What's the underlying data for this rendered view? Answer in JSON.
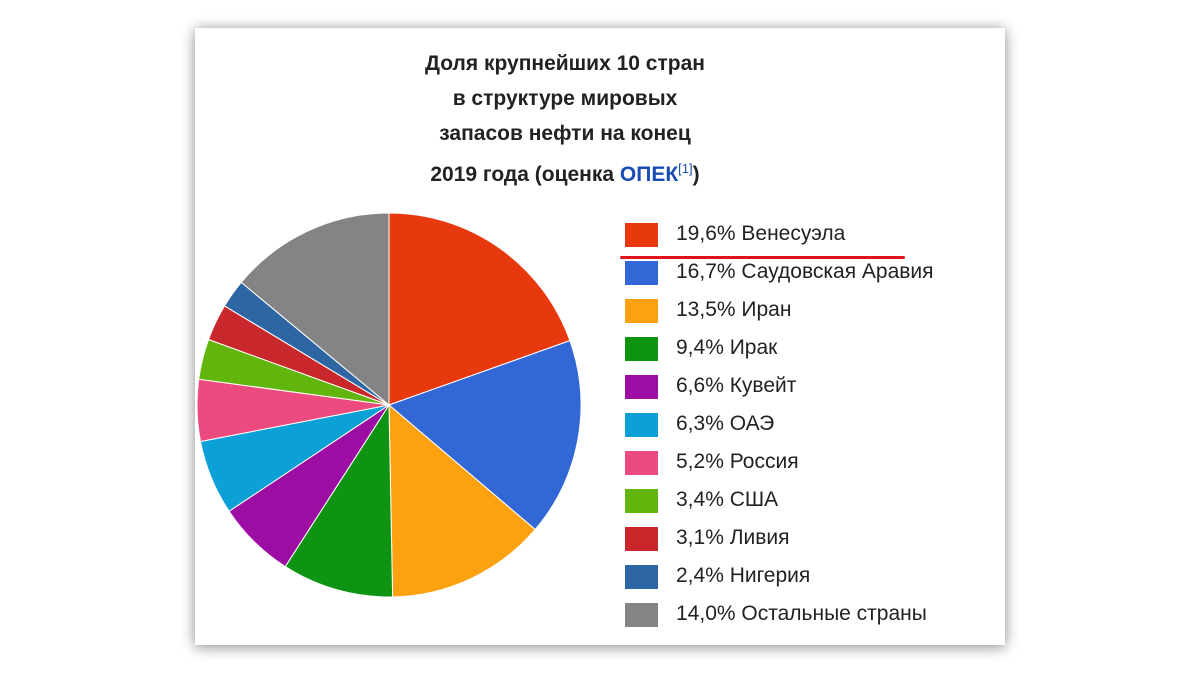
{
  "title": {
    "lines": [
      "Доля крупнейших 10 стран",
      "в структуре мировых",
      "запасов нефти на конец"
    ],
    "last_line_prefix": "2019 года (оценка ",
    "last_line_link": "ОПЕК",
    "last_line_ref": "[1]",
    "last_line_suffix": ")"
  },
  "chart_data": {
    "type": "pie",
    "title": "Доля крупнейших 10 стран в структуре мировых запасов нефти на конец 2019 года (оценка ОПЕК[1])",
    "slices": [
      {
        "label": "19,6% Венесуэла",
        "name": "Венесуэла",
        "value": 19.6,
        "color": "#e8380d"
      },
      {
        "label": "16,7% Саудовская Аравия",
        "name": "Саудовская Аравия",
        "value": 16.7,
        "color": "#3267d6"
      },
      {
        "label": "13,5% Иран",
        "name": "Иран",
        "value": 13.5,
        "color": "#fca10f"
      },
      {
        "label": "9,4% Ирак",
        "name": "Ирак",
        "value": 9.4,
        "color": "#0e9412"
      },
      {
        "label": "6,6% Кувейт",
        "name": "Кувейт",
        "value": 6.6,
        "color": "#9e0da3"
      },
      {
        "label": "6,3% ОАЭ",
        "name": "ОАЭ",
        "value": 6.3,
        "color": "#0ba0d6"
      },
      {
        "label": "5,2% Россия",
        "name": "Россия",
        "value": 5.2,
        "color": "#ed4b80"
      },
      {
        "label": "3,4% США",
        "name": "США",
        "value": 3.4,
        "color": "#62b50d"
      },
      {
        "label": "3,1% Ливия",
        "name": "Ливия",
        "value": 3.1,
        "color": "#c8282b"
      },
      {
        "label": "2,4% Нигерия",
        "name": "Нигерия",
        "value": 2.4,
        "color": "#2d66a3"
      },
      {
        "label": "14,0% Остальные страны",
        "name": "Остальные страны",
        "value": 14.0,
        "color": "#848484"
      }
    ],
    "legend_position": "right",
    "highlighted": "Венесуэла",
    "highlight_color": "#e0121e"
  }
}
